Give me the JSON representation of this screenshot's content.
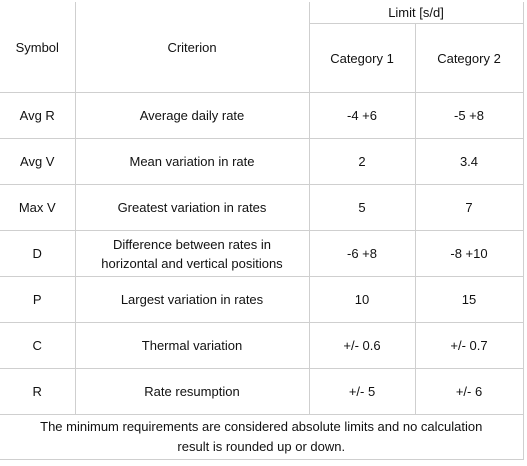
{
  "header": {
    "symbol": "Symbol",
    "criterion": "Criterion",
    "limit": "Limit [s/d]",
    "category1": "Category 1",
    "category2": "Category 2"
  },
  "rows": [
    {
      "symbol": "Avg R",
      "criterion": "Average daily rate",
      "cat1": "-4 +6",
      "cat2": "-5 +8"
    },
    {
      "symbol": "Avg V",
      "criterion": "Mean variation in rate",
      "cat1": "2",
      "cat2": "3.4"
    },
    {
      "symbol": "Max V",
      "criterion": "Greatest variation in rates",
      "cat1": "5",
      "cat2": "7"
    },
    {
      "symbol": "D",
      "criterion_line1": "Difference between rates in",
      "criterion_line2": "horizontal and vertical positions",
      "cat1": "-6 +8",
      "cat2": "-8 +10"
    },
    {
      "symbol": "P",
      "criterion": "Largest variation in rates",
      "cat1": "10",
      "cat2": "15"
    },
    {
      "symbol": "C",
      "criterion": "Thermal variation",
      "cat1": "+/- 0.6",
      "cat2": "+/- 0.7"
    },
    {
      "symbol": "R",
      "criterion": "Rate resumption",
      "cat1": "+/- 5",
      "cat2": "+/- 6"
    }
  ],
  "note_line1": "The minimum requirements are considered absolute limits and no calculation",
  "note_line2": "result is rounded up or down."
}
